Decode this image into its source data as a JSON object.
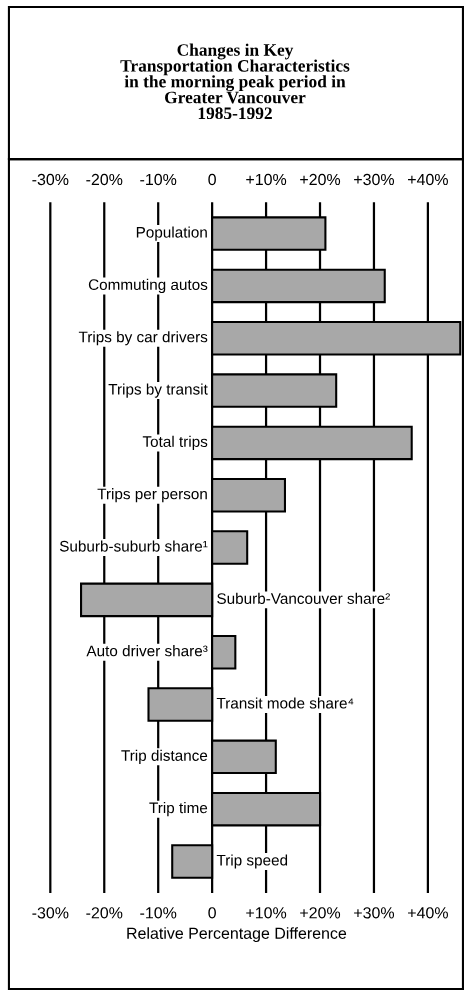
{
  "chart_data": {
    "type": "bar",
    "orientation": "horizontal",
    "title": "Changes in Key\nTransportation Characteristics\nin the morning peak period in\nGreater Vancouver\n1985-1992",
    "xlabel": "Relative Percentage Difference",
    "categories": [
      "Population",
      "Commuting autos",
      "Trips by car drivers",
      "Trips by transit",
      "Total trips",
      "Trips per person",
      "Suburb-suburb share¹",
      "Suburb-Vancouver share²",
      "Auto driver share³",
      "Transit mode share⁴",
      "Trip distance",
      "Trip time",
      "Trip speed"
    ],
    "values": [
      21,
      32,
      46,
      23,
      37,
      13.5,
      6.5,
      -24.3,
      4.3,
      -11.8,
      11.8,
      20,
      -7.4
    ],
    "color": "#a8a8a8",
    "xlim": [
      -37.5,
      46.5
    ],
    "xticks": [
      {
        "value": -30,
        "label": "-30%"
      },
      {
        "value": -20,
        "label": "-20%"
      },
      {
        "value": -10,
        "label": "-10%"
      },
      0,
      {
        "value": 10,
        "label": "+10%"
      },
      {
        "value": 20,
        "label": "+20%"
      },
      {
        "value": 30,
        "label": "+30%"
      },
      {
        "value": 40,
        "label": "+40%"
      }
    ],
    "x2ticks": [
      {
        "value": -30,
        "label": "-30%"
      },
      {
        "value": -20,
        "label": "-20%"
      },
      {
        "value": -10,
        "label": "-10%"
      },
      0,
      {
        "value": 10,
        "label": "+10%"
      },
      {
        "value": 20,
        "label": "+20%"
      },
      {
        "value": 30,
        "label": "+30%"
      },
      {
        "value": 40,
        "label": "+40%"
      }
    ],
    "x2lim": [
      -37.5,
      46.5
    ],
    "grid": "x",
    "legend": false
  }
}
